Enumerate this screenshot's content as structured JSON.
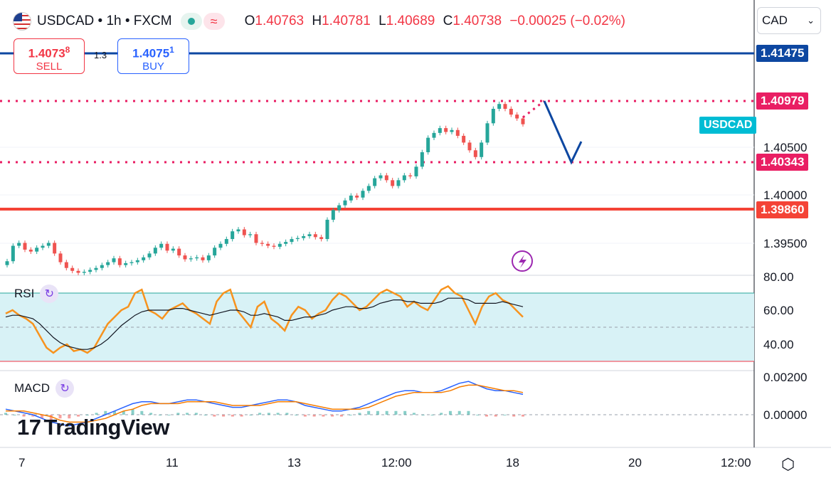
{
  "header": {
    "symbol": "USDCAD • 1h • FXCM",
    "open_label": "O",
    "open": "1.40763",
    "high_label": "H",
    "high": "1.40781",
    "low_label": "L",
    "low": "1.40689",
    "close_label": "C",
    "close": "1.40738",
    "change": "−0.00025 (−0.02%)",
    "waves_glyph": "≈"
  },
  "trade": {
    "sell_price_main": "1.4073",
    "sell_price_sup": "8",
    "sell_label": "SELL",
    "spread": "1.3",
    "buy_price_main": "1.4075",
    "buy_price_sup": "1",
    "buy_label": "BUY"
  },
  "currency_select": {
    "value": "CAD",
    "chevron": "⌄"
  },
  "price_axis": {
    "ticks": [
      "1.40500",
      "1.40000",
      "1.39500"
    ],
    "levels": [
      {
        "value": "1.41475",
        "color": "#0d47a1"
      },
      {
        "value": "1.40979",
        "color": "#e91e63"
      },
      {
        "value": "1.40343",
        "color": "#e91e63"
      },
      {
        "value": "1.39860",
        "color": "#f44336"
      }
    ],
    "symbol_tag": "USDCAD",
    "symbol_tag_color": "#00bcd4"
  },
  "rsi": {
    "title": "RSI",
    "ticks": [
      "80.00",
      "60.00",
      "40.00"
    ],
    "band_color": "#d8f2f6",
    "line_color": "#f7931e",
    "ma_color": "#131722"
  },
  "macd": {
    "title": "MACD",
    "ticks": [
      "0.00200",
      "0.00000"
    ],
    "macd_color": "#2962ff",
    "signal_color": "#f57c00"
  },
  "time_axis": {
    "labels": [
      "7",
      "11",
      "13",
      "12:00",
      "18",
      "20",
      "12:00"
    ]
  },
  "watermark": {
    "mark": "17",
    "name": "TradingView"
  },
  "colors": {
    "up": "#26a69a",
    "down": "#ef5350",
    "arrow": "#0d47a1",
    "lightning": "#9c27b0"
  },
  "chart_data": {
    "type": "candlestick",
    "symbol": "USDCAD",
    "interval": "1h",
    "ylim": [
      1.3925,
      1.4165
    ],
    "horizontal_levels": [
      1.41475,
      1.40979,
      1.40343,
      1.3986
    ],
    "close_series": [
      1.3932,
      1.3948,
      1.3951,
      1.3944,
      1.3942,
      1.3946,
      1.3948,
      1.3951,
      1.394,
      1.3931,
      1.3925,
      1.3922,
      1.392,
      1.3921,
      1.3923,
      1.3925,
      1.3928,
      1.3931,
      1.3935,
      1.3928,
      1.393,
      1.3931,
      1.3933,
      1.3936,
      1.394,
      1.3946,
      1.395,
      1.3943,
      1.3945,
      1.3938,
      1.3934,
      1.3935,
      1.3936,
      1.3933,
      1.3938,
      1.3946,
      1.395,
      1.3955,
      1.3963,
      1.3965,
      1.3959,
      1.396,
      1.3951,
      1.395,
      1.3948,
      1.3947,
      1.395,
      1.3952,
      1.3955,
      1.3956,
      1.3958,
      1.396,
      1.3957,
      1.3955,
      1.3975,
      1.3985,
      1.399,
      1.3995,
      1.4,
      1.3998,
      1.4005,
      1.401,
      1.4018,
      1.4021,
      1.4016,
      1.401,
      1.4016,
      1.4021,
      1.402,
      1.403,
      1.4045,
      1.406,
      1.4065,
      1.407,
      1.4066,
      1.4068,
      1.4062,
      1.4055,
      1.4047,
      1.404,
      1.4055,
      1.4075,
      1.409,
      1.4095,
      1.409,
      1.4084,
      1.408,
      1.4074
    ],
    "rsi_range": [
      30,
      80
    ],
    "rsi_upper": 70,
    "rsi_lower": 30,
    "rsi_series": [
      58,
      60,
      57,
      55,
      52,
      45,
      38,
      35,
      38,
      40,
      36,
      37,
      35,
      38,
      45,
      52,
      56,
      60,
      62,
      70,
      72,
      60,
      58,
      55,
      60,
      62,
      64,
      60,
      58,
      55,
      52,
      65,
      70,
      72,
      60,
      55,
      50,
      62,
      65,
      55,
      52,
      48,
      57,
      62,
      60,
      55,
      58,
      60,
      66,
      70,
      68,
      64,
      60,
      62,
      66,
      70,
      72,
      70,
      68,
      62,
      65,
      62,
      60,
      66,
      72,
      74,
      70,
      68,
      60,
      52,
      62,
      68,
      70,
      66,
      64,
      60,
      56
    ],
    "rsi_ma": [
      56,
      57,
      57,
      56,
      55,
      52,
      48,
      44,
      41,
      39,
      38,
      37,
      37,
      38,
      40,
      43,
      47,
      51,
      54,
      57,
      59,
      60,
      60,
      60,
      60,
      61,
      61,
      60,
      59,
      58,
      57,
      58,
      59,
      60,
      60,
      59,
      57,
      57,
      58,
      57,
      56,
      54,
      54,
      55,
      56,
      56,
      57,
      58,
      60,
      61,
      62,
      62,
      61,
      61,
      62,
      64,
      65,
      66,
      66,
      65,
      65,
      64,
      64,
      64,
      65,
      67,
      67,
      67,
      66,
      64,
      64,
      64,
      64,
      65,
      64,
      63,
      62
    ],
    "macd_range": [
      -0.0008,
      0.0026
    ],
    "macd_series": [
      0.0003,
      0.0002,
      0.0001,
      0.0,
      -0.0002,
      -0.0004,
      -0.0005,
      -0.0006,
      -0.0005,
      -0.0004,
      -0.0002,
      0.0,
      0.0002,
      0.0004,
      0.0006,
      0.0007,
      0.0007,
      0.0006,
      0.0006,
      0.0007,
      0.0008,
      0.0008,
      0.0007,
      0.0006,
      0.0005,
      0.0004,
      0.0004,
      0.0005,
      0.0006,
      0.0007,
      0.0008,
      0.0008,
      0.0007,
      0.0005,
      0.0004,
      0.0003,
      0.0002,
      0.0002,
      0.0003,
      0.0004,
      0.0006,
      0.0008,
      0.001,
      0.0012,
      0.0013,
      0.0013,
      0.0012,
      0.0012,
      0.0013,
      0.0015,
      0.0017,
      0.0018,
      0.0016,
      0.0014,
      0.0013,
      0.0013,
      0.0012,
      0.0011
    ],
    "macd_signal": [
      0.0002,
      0.0002,
      0.0002,
      0.0001,
      0.0,
      -0.0001,
      -0.0003,
      -0.0004,
      -0.0004,
      -0.0004,
      -0.0003,
      -0.0002,
      0.0,
      0.0002,
      0.0003,
      0.0005,
      0.0006,
      0.0006,
      0.0006,
      0.0006,
      0.0007,
      0.0007,
      0.0007,
      0.0007,
      0.0006,
      0.0005,
      0.0005,
      0.0005,
      0.0005,
      0.0006,
      0.0007,
      0.0007,
      0.0007,
      0.0006,
      0.0005,
      0.0004,
      0.0003,
      0.0003,
      0.0003,
      0.0003,
      0.0004,
      0.0006,
      0.0008,
      0.001,
      0.0011,
      0.0012,
      0.0012,
      0.0012,
      0.0012,
      0.0013,
      0.0015,
      0.0016,
      0.0016,
      0.0015,
      0.0014,
      0.0013,
      0.0013,
      0.0012
    ]
  }
}
